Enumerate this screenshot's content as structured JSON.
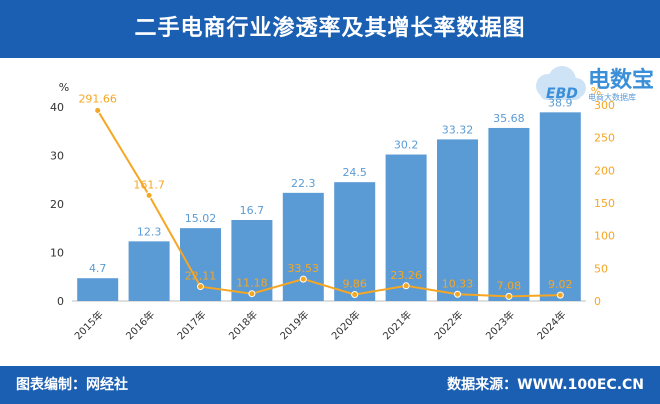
{
  "header": {
    "title": "二手电商行业渗透率及其增长率数据图"
  },
  "footer": {
    "left": "图表编制：网经社",
    "right": "数据来源：WWW.100EC.CN"
  },
  "logo": {
    "name": "电数宝",
    "sub": "电商大数据库",
    "cloud_text": "EBD"
  },
  "colors": {
    "header": "#1b5fb3",
    "bar": "#5b9bd5",
    "line": "#f5a623",
    "bar_label": "#5b9bd5",
    "line_label": "#f5a623"
  },
  "chart_data": {
    "type": "bar",
    "categories": [
      "2015年",
      "2016年",
      "2017年",
      "2018年",
      "2019年",
      "2020年",
      "2021年",
      "2022年",
      "2023年",
      "2024年"
    ],
    "series": [
      {
        "values": [
          4.7,
          12.3,
          15.02,
          16.7,
          22.3,
          24.5,
          30.2,
          33.32,
          35.68,
          38.9
        ],
        "type": "bar",
        "axis": "left"
      },
      {
        "values": [
          291.66,
          161.7,
          22.11,
          11.18,
          33.53,
          9.86,
          23.26,
          10.33,
          7.08,
          9.02
        ],
        "type": "line",
        "axis": "right"
      }
    ],
    "yleft": {
      "label": "%",
      "ylim": [
        0,
        40
      ],
      "ticks": [
        0,
        10,
        20,
        30,
        40
      ]
    },
    "yright": {
      "label": "%",
      "ylim": [
        0,
        300
      ],
      "ticks": [
        0,
        50,
        100,
        150,
        200,
        250,
        300
      ]
    },
    "grid": false,
    "legend": "none"
  }
}
